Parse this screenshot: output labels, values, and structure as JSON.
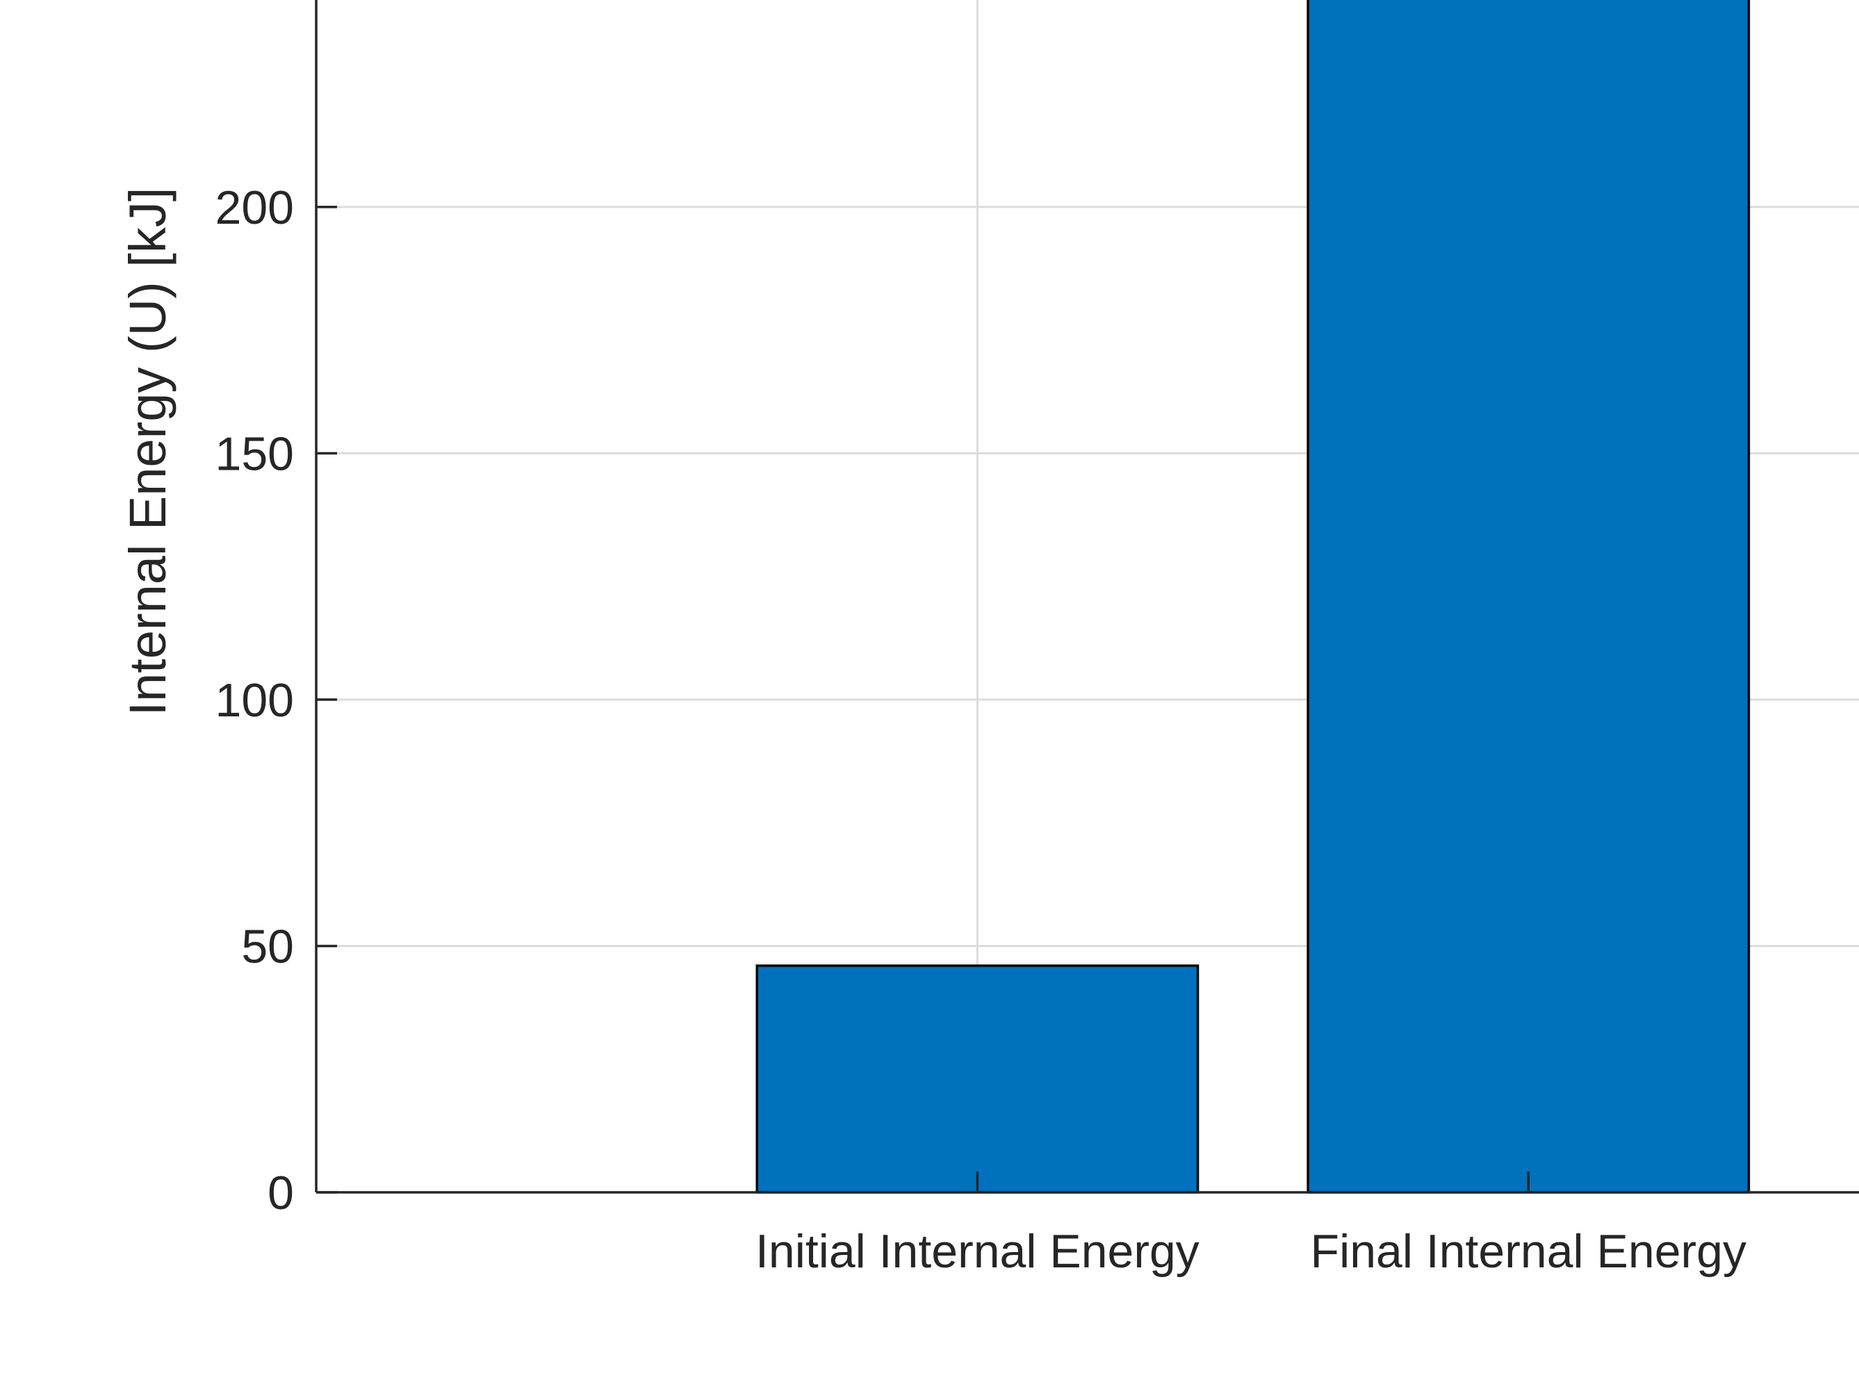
{
  "chart_data": {
    "type": "bar",
    "title": "",
    "xlabel": "",
    "ylabel": "Internal Energy (U) [kJ]",
    "categories": [
      "Initial Internal Energy",
      "Final Internal Energy"
    ],
    "category_positions": [
      1,
      2
    ],
    "xlim": [
      -0.2,
      2.6
    ],
    "values": [
      46,
      262
    ],
    "ylim": [
      0,
      242
    ],
    "yticks": [
      0,
      50,
      100,
      150,
      200
    ],
    "ytick_labels": [
      "0",
      "50",
      "100",
      "150",
      "200"
    ],
    "grid": true,
    "bar_color": "#0072BD",
    "edge_color": "#000000"
  }
}
